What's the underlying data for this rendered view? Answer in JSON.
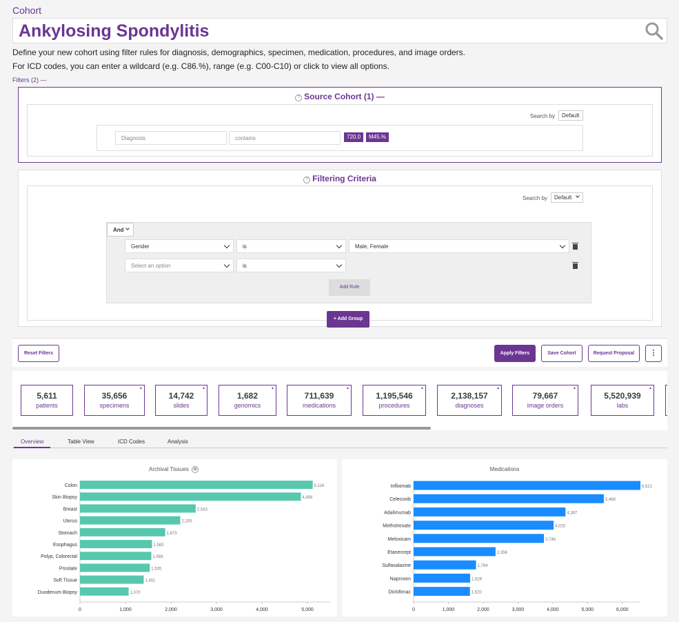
{
  "header": {
    "section_label": "Cohort",
    "cohort_title": "Ankylosing Spondylitis",
    "description_1": "Define your new cohort using filter rules for diagnosis, demographics, specimen, medication, procedures, and image orders.",
    "description_2": "For ICD codes, you can enter a wildcard (e.g. C86.%), range (e.g. C00-C10) or click to view all options.",
    "filters_toggle": "Filters (2) —"
  },
  "source_cohort": {
    "title": "Source Cohort (1) —",
    "search_by_label": "Search by",
    "search_by_value": "Default",
    "field_placeholder": "Diagnosis",
    "operator_placeholder": "contains",
    "tags": [
      "720.0",
      "M45.%"
    ]
  },
  "filtering_criteria": {
    "title": "Filtering Criteria",
    "search_by_label": "Search by",
    "search_by_value": "Default",
    "conjunction": "And",
    "rules": [
      {
        "field": "Gender",
        "operator": "is",
        "value": "Male, Female"
      },
      {
        "field": "Select an option",
        "operator": "is",
        "value": ""
      }
    ],
    "add_rule": "Add Rule",
    "add_group": "+ Add Group"
  },
  "actions": {
    "reset": "Reset Filters",
    "apply": "Apply Filters",
    "save": "Save Cohort",
    "request": "Request Proposal",
    "more": "⋮"
  },
  "stats": [
    {
      "value": "5,611",
      "label": "patients"
    },
    {
      "value": "35,656",
      "label": "specimens"
    },
    {
      "value": "14,742",
      "label": "slides"
    },
    {
      "value": "1,682",
      "label": "genomics"
    },
    {
      "value": "711,639",
      "label": "medications"
    },
    {
      "value": "1,195,546",
      "label": "procedures"
    },
    {
      "value": "2,138,157",
      "label": "diagnoses"
    },
    {
      "value": "79,667",
      "label": "image orders"
    },
    {
      "value": "5,520,939",
      "label": "labs"
    }
  ],
  "tabs": [
    "Overview",
    "Table View",
    "ICD Codes",
    "Analysis"
  ],
  "colors": {
    "brand": "#6b3592",
    "tissue_bar": "#57c8ad",
    "medication_bar": "#1a8cff"
  },
  "chart_data": [
    {
      "type": "bar",
      "orientation": "horizontal",
      "title": "Archival Tissues",
      "categories": [
        "Colon",
        "Skin Biopsy",
        "Breast",
        "Uterus",
        "Stomach",
        "Esophagus",
        "Polyp, Colorectal",
        "Prostate",
        "Soft Tissue",
        "Duodenum Biopsy"
      ],
      "values": [
        5116,
        4856,
        2543,
        2205,
        1873,
        1583,
        1569,
        1535,
        1401,
        1070
      ],
      "value_labels": [
        "5,116",
        "4,856",
        "2,543",
        "2,205",
        "1,873",
        "1,583",
        "1,569",
        "1,535",
        "1,401",
        "1,070"
      ],
      "xlim": [
        0,
        5500
      ],
      "xticks": [
        0,
        1000,
        2000,
        3000,
        4000,
        5000
      ],
      "xtick_labels": [
        "0",
        "1,000",
        "2,000",
        "3,000",
        "4,000",
        "5,000"
      ],
      "grid": false
    },
    {
      "type": "bar",
      "orientation": "horizontal",
      "title": "Medications",
      "categories": [
        "Infliximab",
        "Celecoxib",
        "Adalimumab",
        "Methotrexate",
        "Meloxicam",
        "Etanercept",
        "Sulfasalazine",
        "Naproxen",
        "Diclofenac"
      ],
      "values": [
        6521,
        5468,
        4367,
        4025,
        3746,
        2356,
        1794,
        1626,
        1620
      ],
      "value_labels": [
        "6,521",
        "5,468",
        "4,367",
        "4,025",
        "3,746",
        "2,356",
        "1,794",
        "1,626",
        "1,620"
      ],
      "xlim": [
        0,
        6500
      ],
      "xticks": [
        0,
        1000,
        2000,
        3000,
        4000,
        5000,
        6000
      ],
      "xtick_labels": [
        "0",
        "1,000",
        "2,000",
        "3,000",
        "4,000",
        "5,000",
        "6,000"
      ],
      "grid": false
    }
  ]
}
